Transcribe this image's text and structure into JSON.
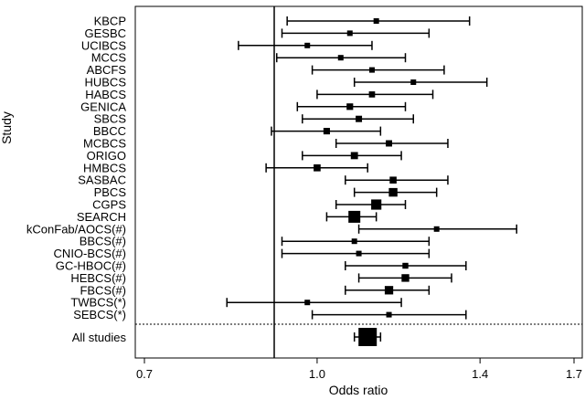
{
  "chart_data": {
    "type": "forest",
    "xlabel": "Odds ratio",
    "ylabel": "Study",
    "x_scale": "log",
    "xlim": [
      0.7,
      1.7
    ],
    "x_ticks": [
      0.7,
      1.0,
      1.4,
      1.7
    ],
    "x_tick_labels": [
      "0.7",
      "1.0",
      "1.4",
      "1.7"
    ],
    "reference_line": 1.0,
    "studies": [
      {
        "name": "KBCP",
        "or": 1.13,
        "lower": 0.94,
        "upper": 1.37
      },
      {
        "name": "GESBC",
        "or": 1.07,
        "lower": 0.93,
        "upper": 1.26
      },
      {
        "name": "UCIBCS",
        "or": 0.98,
        "lower": 0.85,
        "upper": 1.12
      },
      {
        "name": "MCCS",
        "or": 1.05,
        "lower": 0.92,
        "upper": 1.2
      },
      {
        "name": "ABCFS",
        "or": 1.12,
        "lower": 0.99,
        "upper": 1.3
      },
      {
        "name": "HUBCS",
        "or": 1.22,
        "lower": 1.08,
        "upper": 1.42
      },
      {
        "name": "HABCS",
        "or": 1.12,
        "lower": 1.0,
        "upper": 1.27
      },
      {
        "name": "GENICA",
        "or": 1.07,
        "lower": 0.96,
        "upper": 1.2
      },
      {
        "name": "SBCS",
        "or": 1.09,
        "lower": 0.97,
        "upper": 1.22
      },
      {
        "name": "BBCC",
        "or": 1.02,
        "lower": 0.91,
        "upper": 1.14
      },
      {
        "name": "MCBCS",
        "or": 1.16,
        "lower": 1.04,
        "upper": 1.31
      },
      {
        "name": "ORIGO",
        "or": 1.08,
        "lower": 0.97,
        "upper": 1.19
      },
      {
        "name": "HMBCS",
        "or": 1.0,
        "lower": 0.9,
        "upper": 1.11
      },
      {
        "name": "SASBAC",
        "or": 1.17,
        "lower": 1.06,
        "upper": 1.31
      },
      {
        "name": "PBCS",
        "or": 1.17,
        "lower": 1.08,
        "upper": 1.28
      },
      {
        "name": "CGPS",
        "or": 1.13,
        "lower": 1.04,
        "upper": 1.2
      },
      {
        "name": "SEARCH",
        "or": 1.08,
        "lower": 1.02,
        "upper": 1.13
      },
      {
        "name": "kConFab/AOCS(#)",
        "or": 1.28,
        "lower": 1.09,
        "upper": 1.51
      },
      {
        "name": "BBCS(#)",
        "or": 1.08,
        "lower": 0.93,
        "upper": 1.26
      },
      {
        "name": "CNIO-BCS(#)",
        "or": 1.09,
        "lower": 0.93,
        "upper": 1.26
      },
      {
        "name": "GC-HBOC(#)",
        "or": 1.2,
        "lower": 1.06,
        "upper": 1.36
      },
      {
        "name": "HEBCS(#)",
        "or": 1.2,
        "lower": 1.09,
        "upper": 1.32
      },
      {
        "name": "FBCS(#)",
        "or": 1.16,
        "lower": 1.06,
        "upper": 1.26
      },
      {
        "name": "TWBCS(*)",
        "or": 0.98,
        "lower": 0.83,
        "upper": 1.19
      },
      {
        "name": "SEBCS(*)",
        "or": 1.16,
        "lower": 0.99,
        "upper": 1.36
      }
    ],
    "summary": {
      "name": "All studies",
      "or": 1.11,
      "lower": 1.08,
      "upper": 1.14
    }
  }
}
